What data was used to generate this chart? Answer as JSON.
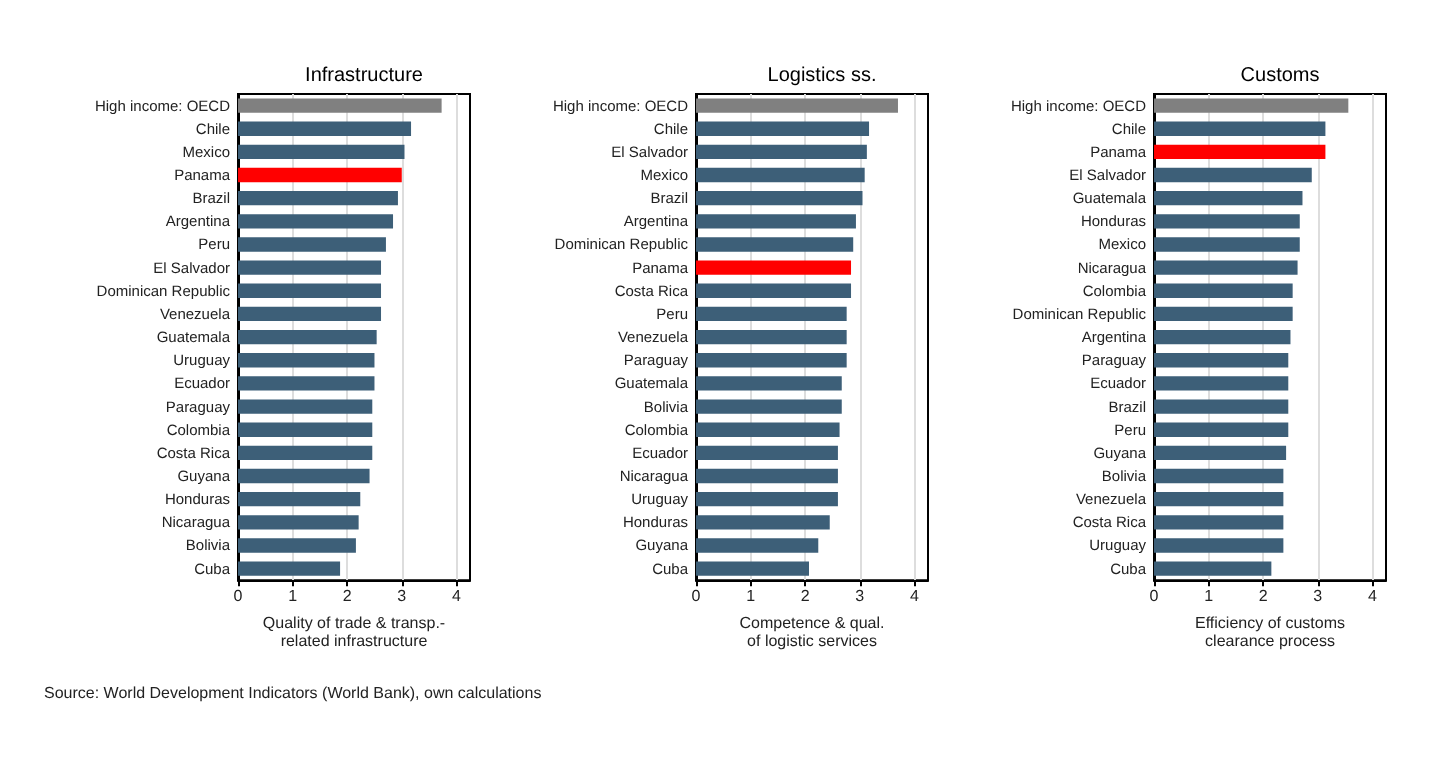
{
  "chart_data": [
    {
      "type": "bar",
      "orientation": "horizontal",
      "title": "Infrastructure",
      "xlabel": "Quality of trade & transp.-\nrelated infrastructure",
      "categories": [
        "High income: OECD",
        "Chile",
        "Mexico",
        "Panama",
        "Brazil",
        "Argentina",
        "Peru",
        "El Salvador",
        "Dominican Republic",
        "Venezuela",
        "Guatemala",
        "Uruguay",
        "Ecuador",
        "Paraguay",
        "Colombia",
        "Costa Rica",
        "Guyana",
        "Honduras",
        "Nicaragua",
        "Bolivia",
        "Cuba"
      ],
      "values": [
        3.73,
        3.17,
        3.05,
        3.0,
        2.93,
        2.84,
        2.71,
        2.62,
        2.62,
        2.62,
        2.54,
        2.5,
        2.5,
        2.46,
        2.46,
        2.46,
        2.41,
        2.24,
        2.21,
        2.16,
        1.87
      ],
      "colors": [
        "#808080",
        "#3d5f78",
        "#3d5f78",
        "#ff0000",
        "#3d5f78",
        "#3d5f78",
        "#3d5f78",
        "#3d5f78",
        "#3d5f78",
        "#3d5f78",
        "#3d5f78",
        "#3d5f78",
        "#3d5f78",
        "#3d5f78",
        "#3d5f78",
        "#3d5f78",
        "#3d5f78",
        "#3d5f78",
        "#3d5f78",
        "#3d5f78",
        "#3d5f78"
      ],
      "xlim": [
        0,
        4.25
      ],
      "xticks": [
        0,
        1,
        2,
        3,
        4
      ],
      "grid": "x"
    },
    {
      "type": "bar",
      "orientation": "horizontal",
      "title": "Logistics ss.",
      "xlabel": "Competence & qual.\nof logistic services",
      "categories": [
        "High income: OECD",
        "Chile",
        "El Salvador",
        "Mexico",
        "Brazil",
        "Argentina",
        "Dominican Republic",
        "Panama",
        "Costa Rica",
        "Peru",
        "Venezuela",
        "Paraguay",
        "Guatemala",
        "Bolivia",
        "Colombia",
        "Ecuador",
        "Nicaragua",
        "Uruguay",
        "Honduras",
        "Guyana",
        "Cuba"
      ],
      "values": [
        3.7,
        3.17,
        3.13,
        3.09,
        3.05,
        2.93,
        2.88,
        2.84,
        2.84,
        2.76,
        2.76,
        2.76,
        2.67,
        2.67,
        2.63,
        2.6,
        2.6,
        2.6,
        2.45,
        2.24,
        2.07
      ],
      "colors": [
        "#808080",
        "#3d5f78",
        "#3d5f78",
        "#3d5f78",
        "#3d5f78",
        "#3d5f78",
        "#3d5f78",
        "#ff0000",
        "#3d5f78",
        "#3d5f78",
        "#3d5f78",
        "#3d5f78",
        "#3d5f78",
        "#3d5f78",
        "#3d5f78",
        "#3d5f78",
        "#3d5f78",
        "#3d5f78",
        "#3d5f78",
        "#3d5f78",
        "#3d5f78"
      ],
      "xlim": [
        0,
        4.25
      ],
      "xticks": [
        0,
        1,
        2,
        3,
        4
      ],
      "grid": "x"
    },
    {
      "type": "bar",
      "orientation": "horizontal",
      "title": "Customs",
      "xlabel": "Efficiency of customs\nclearance process",
      "categories": [
        "High income: OECD",
        "Chile",
        "Panama",
        "El Salvador",
        "Guatemala",
        "Honduras",
        "Mexico",
        "Nicaragua",
        "Colombia",
        "Dominican Republic",
        "Argentina",
        "Paraguay",
        "Ecuador",
        "Brazil",
        "Peru",
        "Guyana",
        "Bolivia",
        "Venezuela",
        "Costa Rica",
        "Uruguay",
        "Cuba"
      ],
      "values": [
        3.56,
        3.14,
        3.14,
        2.89,
        2.72,
        2.67,
        2.67,
        2.63,
        2.54,
        2.54,
        2.5,
        2.46,
        2.46,
        2.46,
        2.46,
        2.42,
        2.37,
        2.37,
        2.37,
        2.37,
        2.15
      ],
      "colors": [
        "#808080",
        "#3d5f78",
        "#ff0000",
        "#3d5f78",
        "#3d5f78",
        "#3d5f78",
        "#3d5f78",
        "#3d5f78",
        "#3d5f78",
        "#3d5f78",
        "#3d5f78",
        "#3d5f78",
        "#3d5f78",
        "#3d5f78",
        "#3d5f78",
        "#3d5f78",
        "#3d5f78",
        "#3d5f78",
        "#3d5f78",
        "#3d5f78",
        "#3d5f78"
      ],
      "xlim": [
        0,
        4.25
      ],
      "xticks": [
        0,
        1,
        2,
        3,
        4
      ],
      "grid": "x",
      "annotations": [
        "Source: World Development Indicators (World Bank), own calculations"
      ]
    }
  ]
}
